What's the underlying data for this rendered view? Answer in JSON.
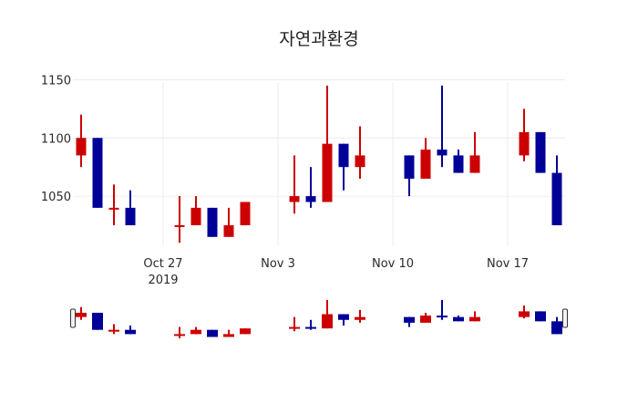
{
  "chart_data": {
    "type": "candlestick",
    "title": "자연과환경",
    "xlabel": "",
    "ylabel": "",
    "ylim": [
      1007,
      1148
    ],
    "y_ticks": [
      1050,
      1100,
      1150
    ],
    "x_ticks": [
      {
        "date": "2019-10-27",
        "label": "Oct 27",
        "sublabel": "2019"
      },
      {
        "date": "2019-11-03",
        "label": "Nov 3",
        "sublabel": ""
      },
      {
        "date": "2019-11-10",
        "label": "Nov 10",
        "sublabel": ""
      },
      {
        "date": "2019-11-17",
        "label": "Nov 17",
        "sublabel": ""
      }
    ],
    "x_range": [
      "2019-10-21T12:00",
      "2019-11-20T12:00"
    ],
    "grid": true,
    "increasing_color": "#cc0000",
    "decreasing_color": "#000099",
    "rangeslider": true,
    "candles": [
      {
        "date": "2019-10-22",
        "open": 1085,
        "high": 1120,
        "low": 1075,
        "close": 1100
      },
      {
        "date": "2019-10-23",
        "open": 1100,
        "high": 1100,
        "low": 1040,
        "close": 1040
      },
      {
        "date": "2019-10-24",
        "open": 1040,
        "high": 1060,
        "low": 1025,
        "close": 1040
      },
      {
        "date": "2019-10-25",
        "open": 1040,
        "high": 1055,
        "low": 1025,
        "close": 1025
      },
      {
        "date": "2019-10-28",
        "open": 1025,
        "high": 1050,
        "low": 1010,
        "close": 1025
      },
      {
        "date": "2019-10-29",
        "open": 1025,
        "high": 1050,
        "low": 1025,
        "close": 1040
      },
      {
        "date": "2019-10-30",
        "open": 1040,
        "high": 1040,
        "low": 1015,
        "close": 1015
      },
      {
        "date": "2019-10-31",
        "open": 1015,
        "high": 1040,
        "low": 1015,
        "close": 1025
      },
      {
        "date": "2019-11-01",
        "open": 1025,
        "high": 1045,
        "low": 1025,
        "close": 1045
      },
      {
        "date": "2019-11-04",
        "open": 1045,
        "high": 1085,
        "low": 1035,
        "close": 1050
      },
      {
        "date": "2019-11-05",
        "open": 1050,
        "high": 1075,
        "low": 1040,
        "close": 1045
      },
      {
        "date": "2019-11-06",
        "open": 1045,
        "high": 1145,
        "low": 1045,
        "close": 1095
      },
      {
        "date": "2019-11-07",
        "open": 1095,
        "high": 1095,
        "low": 1055,
        "close": 1075
      },
      {
        "date": "2019-11-08",
        "open": 1075,
        "high": 1110,
        "low": 1065,
        "close": 1085
      },
      {
        "date": "2019-11-11",
        "open": 1085,
        "high": 1085,
        "low": 1050,
        "close": 1065
      },
      {
        "date": "2019-11-12",
        "open": 1065,
        "high": 1100,
        "low": 1065,
        "close": 1090
      },
      {
        "date": "2019-11-13",
        "open": 1090,
        "high": 1145,
        "low": 1075,
        "close": 1085
      },
      {
        "date": "2019-11-14",
        "open": 1085,
        "high": 1090,
        "low": 1070,
        "close": 1070
      },
      {
        "date": "2019-11-15",
        "open": 1070,
        "high": 1105,
        "low": 1070,
        "close": 1085
      },
      {
        "date": "2019-11-18",
        "open": 1085,
        "high": 1125,
        "low": 1080,
        "close": 1105
      },
      {
        "date": "2019-11-19",
        "open": 1105,
        "high": 1105,
        "low": 1070,
        "close": 1070
      },
      {
        "date": "2019-11-20",
        "open": 1070,
        "high": 1085,
        "low": 1025,
        "close": 1025
      }
    ]
  }
}
